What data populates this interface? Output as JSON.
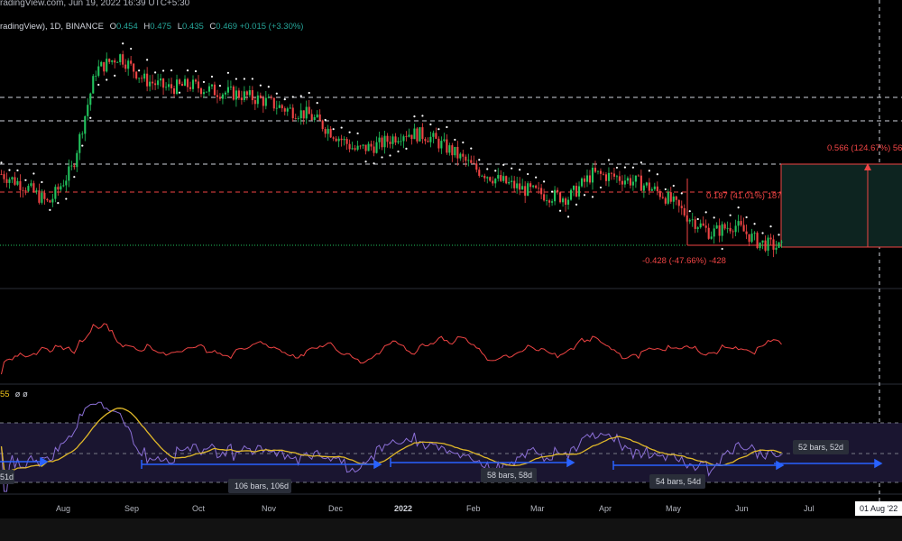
{
  "header": {
    "published": "radingView.com, Jun 19, 2022 16:39 UTC+5:30"
  },
  "legend": {
    "symbol": "radingView), 1D, BINANCE",
    "o_label": "O",
    "o": "0.454",
    "h_label": "H",
    "h": "0.475",
    "l_label": "L",
    "l": "0.435",
    "c_label": "C",
    "c": "0.469",
    "change": "+0.015 (+3.30%)"
  },
  "indicator_legend": {
    "value": "55",
    "symbols": "ø ø"
  },
  "colors": {
    "up": "#26a69a",
    "down": "#ef5350",
    "bull_candle": "#22c55e",
    "bear_candle": "#ef4444",
    "sar": "#ffffff",
    "osc": "#ef4444",
    "rsi": "#8b6fd6",
    "rsi_ma": "#e0b829",
    "range": "#2962ff",
    "measure_fill": "#0d2420",
    "measure_line": "#ef4444"
  },
  "chart_data": {
    "type": "candlestick",
    "x_axis_labels": [
      "Aug",
      "Sep",
      "Oct",
      "Nov",
      "Dec",
      "2022",
      "Feb",
      "Mar",
      "Apr",
      "May",
      "Jun",
      "Jul"
    ],
    "date_label": "01 Aug '22",
    "price_path": [
      0.7,
      0.66,
      0.6,
      0.72,
      1.05,
      1.1,
      1.02,
      0.99,
      1.0,
      0.98,
      0.97,
      0.95,
      0.92,
      0.9,
      0.84,
      0.78,
      0.8,
      0.84,
      0.83,
      0.78,
      0.72,
      0.68,
      0.65,
      0.63,
      0.62,
      0.7,
      0.69,
      0.67,
      0.63,
      0.56,
      0.5,
      0.53,
      0.47,
      0.45
    ],
    "measure": {
      "upper_label": "0.566 (124.67%) 56",
      "middle_label": "0.187 (41.01%) 187",
      "lower_label": "-0.428 (-47.66%) -428"
    },
    "ranges": [
      {
        "label": "",
        "end_label": "51d"
      },
      {
        "label": "106 bars, 106d"
      },
      {
        "label": "58 bars, 58d"
      },
      {
        "label": "54 bars, 54d"
      },
      {
        "label": "52 bars, 52d"
      }
    ]
  }
}
